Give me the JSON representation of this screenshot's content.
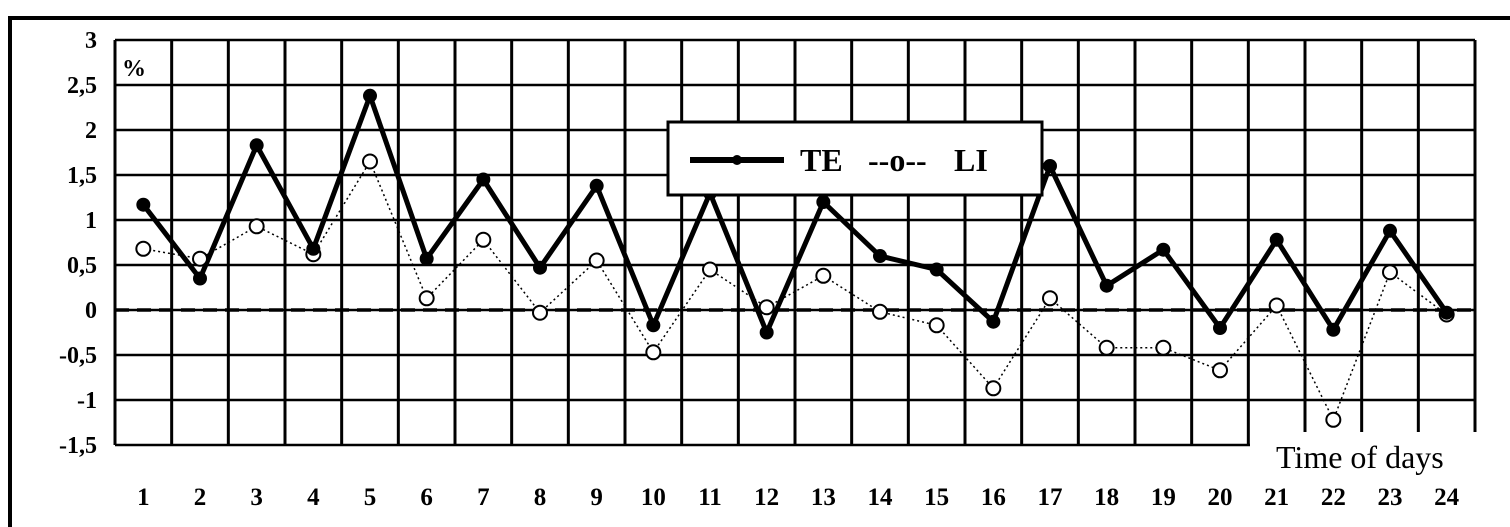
{
  "chart_data": {
    "type": "line",
    "unit_label": "%",
    "xlabel": "Time of days",
    "ylabel": "",
    "x": [
      1,
      2,
      3,
      4,
      5,
      6,
      7,
      8,
      9,
      10,
      11,
      12,
      13,
      14,
      15,
      16,
      17,
      18,
      19,
      20,
      21,
      22,
      23,
      24
    ],
    "ylim": [
      -1.5,
      3
    ],
    "yticks": [
      "3",
      "2,5",
      "2",
      "1,5",
      "1",
      "0,5",
      "0",
      "-0,5",
      "-1",
      "-1,5"
    ],
    "ytick_values": [
      3,
      2.5,
      2,
      1.5,
      1,
      0.5,
      0,
      -0.5,
      -1,
      -1.5
    ],
    "grid": true,
    "legend_position": "top-center",
    "series": [
      {
        "name": "TE",
        "legend_symbol": "━━•━━",
        "marker": "filled-circle",
        "style": "solid",
        "color": "#000000",
        "values": [
          1.17,
          0.35,
          1.83,
          0.68,
          2.38,
          0.57,
          1.45,
          0.47,
          1.38,
          -0.17,
          1.3,
          -0.25,
          1.2,
          0.6,
          0.45,
          -0.13,
          1.6,
          0.27,
          0.67,
          -0.2,
          0.78,
          -0.22,
          0.88,
          -0.03
        ]
      },
      {
        "name": "LI",
        "legend_symbol": "--o--",
        "marker": "open-circle",
        "style": "dotted",
        "color": "#000000",
        "values": [
          0.68,
          0.57,
          0.93,
          0.62,
          1.65,
          0.13,
          0.78,
          -0.03,
          0.55,
          -0.47,
          0.45,
          0.03,
          0.38,
          -0.02,
          -0.17,
          -0.87,
          0.13,
          -0.42,
          -0.42,
          -0.67,
          0.05,
          -1.22,
          0.42,
          -0.05
        ]
      }
    ]
  }
}
